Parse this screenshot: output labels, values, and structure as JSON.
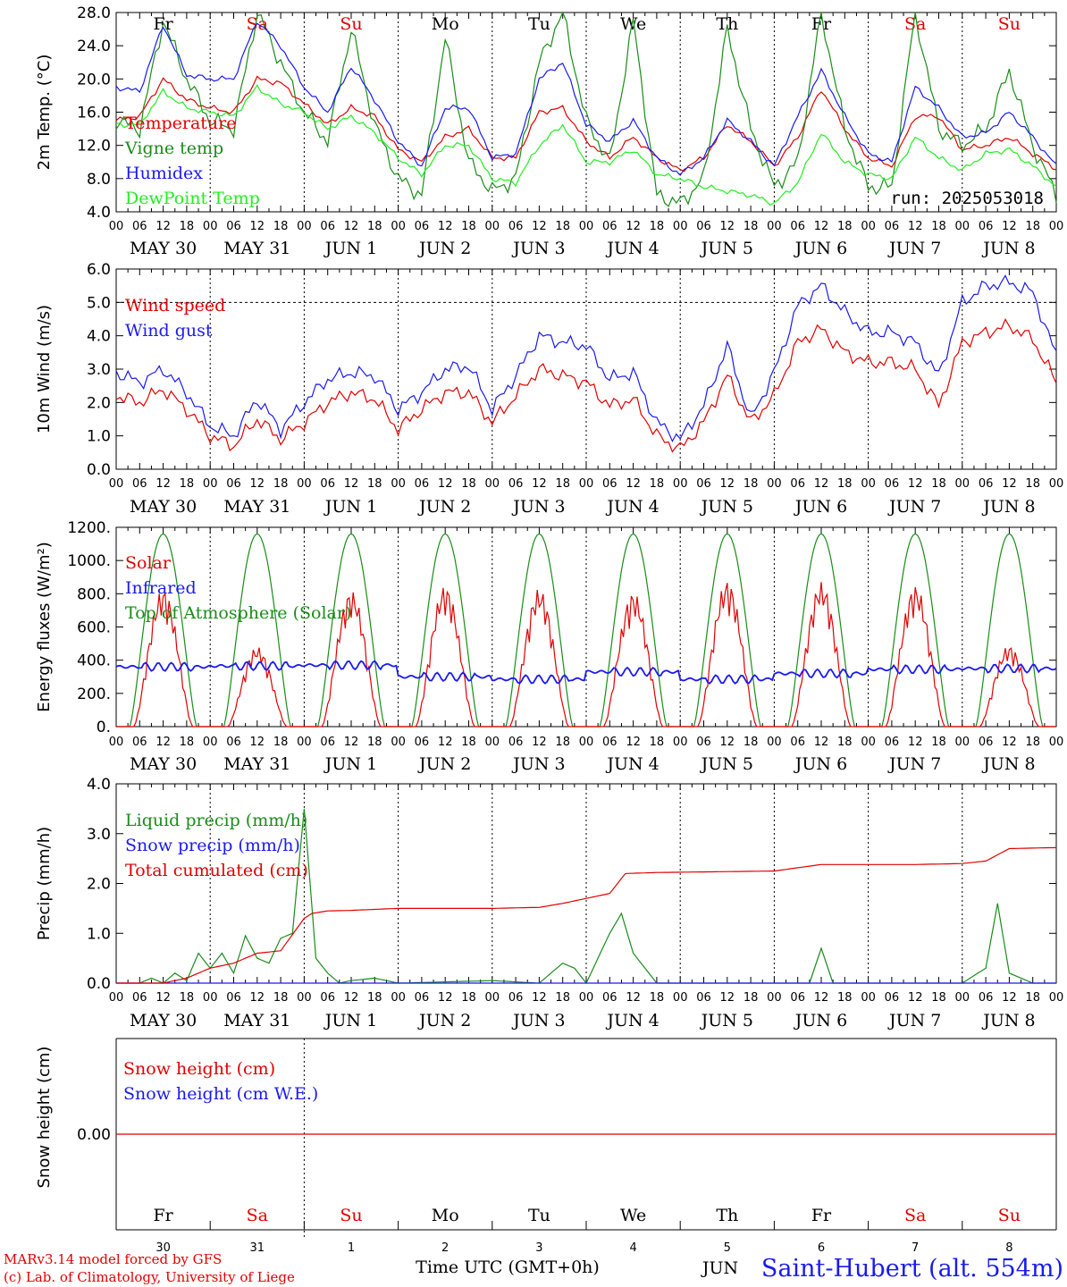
{
  "meteogram": {
    "run_label": "run: 2025053018",
    "hour_ticks": [
      "00",
      "06",
      "12",
      "18"
    ],
    "final_hour_tick": "00",
    "date_labels": [
      "MAY 30",
      "MAY 31",
      "JUN  1",
      "JUN  2",
      "JUN  3",
      "JUN  4",
      "JUN  5",
      "JUN  6",
      "JUN  7",
      "JUN  8"
    ],
    "weekdays": [
      "Fr",
      "Sa",
      "Su",
      "Mo",
      "Tu",
      "We",
      "Th",
      "Fr",
      "Sa",
      "Su"
    ],
    "weekend_color": "#e00000",
    "weekday_color": "#000000",
    "day_numbers": [
      "30",
      "31",
      "1",
      "2",
      "3",
      "4",
      "5",
      "6",
      "7",
      "8"
    ],
    "footer": {
      "credit_line1": "MARv3.14 model forced by GFS",
      "credit_line2": "(c) Lab. of Climatology, University of Liege",
      "xlabel": "Time UTC (GMT+0h)",
      "month_label": "JUN",
      "station": "Saint-Hubert (alt. 554m)"
    },
    "colors": {
      "red": "#e00000",
      "green": "#1a8c1a",
      "blue": "#1a1aee",
      "lightgreen": "#22ee22"
    }
  },
  "chart_data": [
    {
      "type": "line",
      "ylabel": "2m Temp. (°C)",
      "ylim": [
        4,
        28
      ],
      "ytick_labels": [
        "4.0",
        "8.0",
        "12.0",
        "16.0",
        "20.0",
        "24.0",
        "28.0"
      ],
      "x_unit": "hours from May 30 00 UTC",
      "series": [
        {
          "name": "Temperature",
          "color": "red",
          "x": [
            0,
            6,
            12,
            18,
            24,
            30,
            36,
            42,
            48,
            54,
            60,
            66,
            72,
            78,
            84,
            90,
            96,
            102,
            108,
            114,
            120,
            126,
            132,
            138,
            144,
            150,
            156,
            162,
            168,
            174,
            180,
            186,
            192,
            198,
            204,
            210,
            216,
            222,
            228,
            234,
            240
          ],
          "values": [
            15.0,
            15.5,
            20.0,
            17.5,
            16.5,
            16.0,
            20.0,
            19.5,
            17.0,
            14.5,
            16.5,
            15.5,
            11.5,
            10.0,
            13.0,
            14.0,
            10.5,
            10.5,
            16.0,
            16.5,
            12.5,
            10.5,
            13.0,
            10.5,
            9.0,
            10.5,
            14.5,
            12.5,
            9.5,
            13.0,
            18.8,
            14.0,
            10.5,
            9.5,
            15.5,
            15.5,
            11.5,
            12.0,
            13.0,
            11.0,
            9.2
          ]
        },
        {
          "name": "Vigne temp",
          "color": "green",
          "x": [
            0,
            6,
            12,
            18,
            24,
            30,
            36,
            42,
            48,
            54,
            60,
            66,
            72,
            78,
            84,
            90,
            96,
            102,
            108,
            114,
            120,
            126,
            132,
            138,
            144,
            150,
            156,
            162,
            168,
            174,
            180,
            186,
            192,
            198,
            204,
            210,
            216,
            222,
            228,
            234,
            240
          ],
          "values": [
            15.0,
            14.0,
            27.0,
            20.0,
            15.0,
            14.0,
            28.0,
            22.0,
            16.0,
            12.5,
            26.0,
            14.5,
            8.0,
            6.0,
            25.0,
            10.0,
            6.5,
            8.0,
            22.0,
            28.0,
            15.0,
            10.0,
            27.0,
            6.0,
            5.0,
            8.0,
            26.0,
            14.0,
            7.0,
            10.0,
            28.0,
            14.0,
            7.0,
            7.0,
            28.0,
            14.0,
            12.0,
            14.0,
            21.0,
            12.0,
            6.0
          ]
        },
        {
          "name": "Humidex",
          "color": "blue",
          "x": [
            0,
            6,
            12,
            18,
            24,
            30,
            36,
            42,
            48,
            54,
            60,
            66,
            72,
            78,
            84,
            90,
            96,
            102,
            108,
            114,
            120,
            126,
            132,
            138,
            144,
            150,
            156,
            162,
            168,
            174,
            180,
            186,
            192,
            198,
            204,
            210,
            216,
            222,
            228,
            234,
            240
          ],
          "values": [
            19.0,
            18.5,
            26.5,
            20.5,
            20.0,
            20.0,
            27.0,
            24.0,
            19.0,
            16.0,
            21.5,
            17.5,
            12.5,
            9.5,
            16.5,
            16.5,
            10.5,
            11.0,
            20.0,
            22.0,
            14.5,
            12.5,
            15.0,
            10.5,
            8.5,
            10.5,
            15.0,
            12.5,
            9.5,
            15.5,
            21.0,
            15.5,
            11.0,
            10.0,
            19.0,
            16.5,
            13.0,
            13.5,
            16.0,
            13.0,
            9.5
          ]
        },
        {
          "name": "DewPoint Temp",
          "color": "lightgreen",
          "x": [
            0,
            6,
            12,
            18,
            24,
            30,
            36,
            42,
            48,
            54,
            60,
            66,
            72,
            78,
            84,
            90,
            96,
            102,
            108,
            114,
            120,
            126,
            132,
            138,
            144,
            150,
            156,
            162,
            168,
            174,
            180,
            186,
            192,
            198,
            204,
            210,
            216,
            222,
            228,
            234,
            240
          ],
          "values": [
            14.5,
            14.5,
            18.5,
            16.5,
            16.0,
            15.5,
            19.0,
            17.0,
            16.0,
            14.0,
            15.5,
            13.5,
            10.5,
            8.5,
            12.0,
            12.0,
            8.0,
            7.5,
            12.0,
            14.5,
            10.0,
            10.0,
            11.5,
            8.5,
            8.0,
            7.0,
            6.5,
            6.0,
            5.0,
            7.5,
            13.5,
            10.0,
            8.5,
            8.0,
            13.0,
            10.5,
            9.0,
            11.0,
            11.5,
            9.5,
            7.0
          ]
        }
      ]
    },
    {
      "type": "line",
      "ylabel": "10m Wind (m/s)",
      "ylim": [
        0,
        6
      ],
      "ytick_labels": [
        "0.0",
        "1.0",
        "2.0",
        "3.0",
        "4.0",
        "5.0",
        "6.0"
      ],
      "reference_line": 5.0,
      "x_unit": "hours from May 30 00 UTC",
      "series": [
        {
          "name": "Wind speed",
          "color": "red",
          "x": [
            0,
            6,
            12,
            18,
            24,
            30,
            36,
            42,
            48,
            54,
            60,
            66,
            72,
            78,
            84,
            90,
            96,
            102,
            108,
            114,
            120,
            126,
            132,
            138,
            144,
            150,
            156,
            162,
            168,
            174,
            180,
            186,
            192,
            198,
            204,
            210,
            216,
            222,
            228,
            234,
            240
          ],
          "values": [
            2.2,
            2.0,
            2.4,
            1.8,
            1.0,
            0.7,
            1.5,
            0.9,
            1.4,
            2.0,
            2.3,
            2.1,
            1.2,
            1.8,
            2.3,
            2.3,
            1.4,
            2.2,
            3.0,
            2.8,
            2.6,
            1.9,
            2.1,
            1.0,
            0.6,
            1.4,
            2.8,
            1.4,
            2.2,
            3.8,
            4.2,
            3.5,
            3.2,
            3.2,
            3.0,
            1.9,
            3.8,
            4.1,
            4.3,
            3.9,
            2.6
          ]
        },
        {
          "name": "Wind gust",
          "color": "blue",
          "x": [
            0,
            6,
            12,
            18,
            24,
            30,
            36,
            42,
            48,
            54,
            60,
            66,
            72,
            78,
            84,
            90,
            96,
            102,
            108,
            114,
            120,
            126,
            132,
            138,
            144,
            150,
            156,
            162,
            168,
            174,
            180,
            186,
            192,
            198,
            204,
            210,
            216,
            222,
            228,
            234,
            240
          ],
          "values": [
            2.9,
            2.6,
            3.0,
            2.3,
            1.3,
            1.0,
            2.1,
            1.2,
            2.0,
            2.7,
            2.9,
            2.8,
            1.8,
            2.3,
            3.0,
            3.1,
            1.8,
            2.8,
            4.0,
            3.8,
            3.7,
            2.7,
            2.9,
            1.4,
            0.9,
            1.9,
            3.7,
            1.5,
            2.9,
            4.9,
            5.5,
            4.7,
            4.1,
            4.1,
            3.8,
            2.8,
            5.0,
            5.5,
            5.6,
            5.3,
            3.4
          ]
        }
      ]
    },
    {
      "type": "line",
      "ylabel": "Energy fluxes (W/m²)",
      "ylim": [
        0,
        1200
      ],
      "ytick_labels": [
        "0.",
        "200.",
        "400.",
        "600.",
        "800.",
        "1000.",
        "1200."
      ],
      "x_unit": "hours from May 30 00 UTC",
      "toa_peak": 1160,
      "solar_daily_peaks": [
        830,
        480,
        820,
        850,
        830,
        810,
        880,
        870,
        850,
        490
      ],
      "infrared_mean": [
        360,
        365,
        370,
        300,
        285,
        330,
        285,
        320,
        345,
        350
      ],
      "series": [
        {
          "name": "Solar",
          "color": "red"
        },
        {
          "name": "Infrared",
          "color": "blue"
        },
        {
          "name": "Top of Atmosphere (Solar)",
          "color": "green"
        }
      ]
    },
    {
      "type": "line",
      "ylabel": "Precip (mm/h)",
      "ylim": [
        0,
        4
      ],
      "ytick_labels": [
        "0.0",
        "1.0",
        "2.0",
        "3.0",
        "4.0"
      ],
      "x_unit": "hours from May 30 00 UTC",
      "series": [
        {
          "name": "Liquid precip (mm/h)",
          "color": "green",
          "x": [
            0,
            6,
            9,
            12,
            15,
            18,
            21,
            24,
            27,
            30,
            33,
            36,
            39,
            42,
            45,
            48,
            51,
            54,
            57,
            60,
            66,
            72,
            96,
            108,
            114,
            117,
            120,
            126,
            129,
            132,
            135,
            138,
            168,
            177,
            180,
            183,
            204,
            210,
            216,
            222,
            225,
            228,
            234,
            240
          ],
          "values": [
            0,
            0,
            0.1,
            0,
            0.2,
            0.05,
            0.6,
            0.3,
            0.6,
            0.2,
            0.95,
            0.5,
            0.4,
            0.9,
            1.0,
            3.5,
            0.5,
            0.2,
            0,
            0.05,
            0.1,
            0,
            0.05,
            0,
            0.4,
            0.3,
            0,
            1.0,
            1.4,
            0.6,
            0.3,
            0,
            0,
            0,
            0.7,
            0,
            0,
            0,
            0,
            0.3,
            1.6,
            0.2,
            0,
            0
          ]
        },
        {
          "name": "Snow precip (mm/h)",
          "color": "blue",
          "x": [
            0,
            240
          ],
          "values": [
            0,
            0
          ]
        },
        {
          "name": "Total cumulated (cm)",
          "color": "red",
          "x": [
            0,
            12,
            18,
            24,
            30,
            36,
            42,
            48,
            50,
            54,
            60,
            72,
            84,
            96,
            108,
            114,
            120,
            126,
            130,
            138,
            168,
            180,
            192,
            204,
            216,
            222,
            228,
            240
          ],
          "values": [
            0,
            0,
            0.1,
            0.3,
            0.4,
            0.6,
            0.65,
            1.3,
            1.4,
            1.45,
            1.46,
            1.5,
            1.5,
            1.5,
            1.52,
            1.6,
            1.7,
            1.8,
            2.2,
            2.22,
            2.25,
            2.38,
            2.38,
            2.38,
            2.4,
            2.45,
            2.7,
            2.72
          ]
        }
      ]
    },
    {
      "type": "line",
      "ylabel": "Snow height (cm)",
      "ytick_labels": [
        "0.00"
      ],
      "series": [
        {
          "name": "Snow height (cm)",
          "color": "red",
          "x": [
            0,
            240
          ],
          "values": [
            0,
            0
          ]
        },
        {
          "name": "Snow height (cm W.E.)",
          "color": "blue",
          "x": [
            0,
            240
          ],
          "values": [
            0,
            0
          ]
        }
      ]
    }
  ]
}
